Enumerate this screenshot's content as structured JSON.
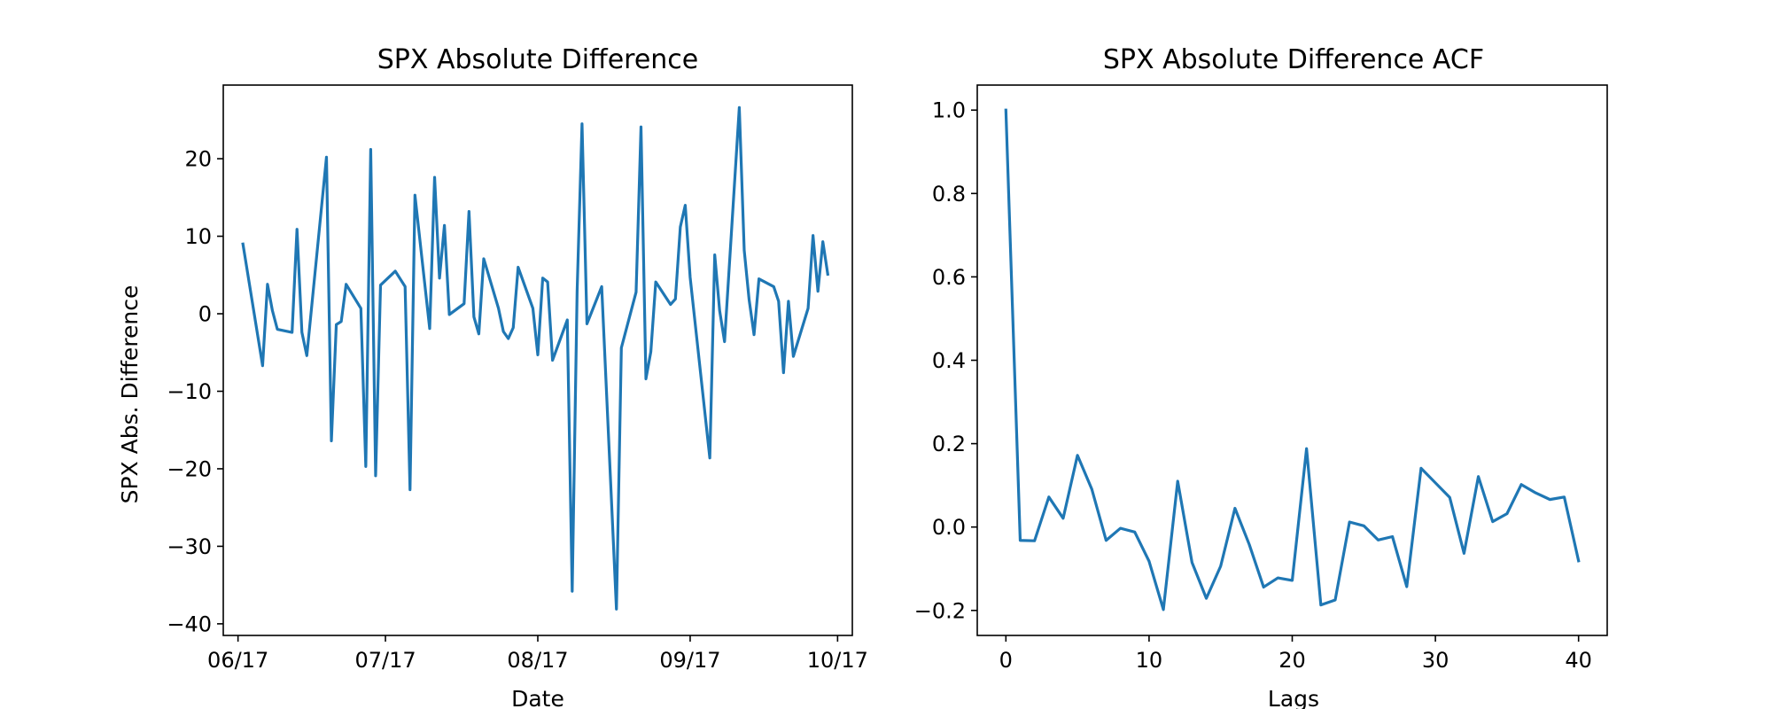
{
  "chart_data": [
    {
      "type": "line",
      "title": "SPX Absolute Difference",
      "xlabel": "Date",
      "ylabel": "SPX Abs. Difference",
      "x_axis_kind": "date",
      "x_tick_labels": [
        {
          "date": "2017-06-01",
          "label": "06/17"
        },
        {
          "date": "2017-07-01",
          "label": "07/17"
        },
        {
          "date": "2017-08-01",
          "label": "08/17"
        },
        {
          "date": "2017-09-01",
          "label": "09/17"
        },
        {
          "date": "2017-10-01",
          "label": "10/17"
        }
      ],
      "yticks": [
        -40,
        -30,
        -20,
        -10,
        0,
        10,
        20
      ],
      "xlim": [
        "2017-05-29",
        "2017-10-04"
      ],
      "ylim": [
        -41.5,
        29.5
      ],
      "grid": false,
      "series": [
        {
          "color": "#1f77b4",
          "x": [
            "2017-06-02",
            "2017-06-06",
            "2017-06-07",
            "2017-06-08",
            "2017-06-09",
            "2017-06-12",
            "2017-06-13",
            "2017-06-14",
            "2017-06-15",
            "2017-06-19",
            "2017-06-20",
            "2017-06-21",
            "2017-06-22",
            "2017-06-23",
            "2017-06-26",
            "2017-06-27",
            "2017-06-28",
            "2017-06-29",
            "2017-06-30",
            "2017-07-03",
            "2017-07-05",
            "2017-07-06",
            "2017-07-07",
            "2017-07-10",
            "2017-07-11",
            "2017-07-12",
            "2017-07-13",
            "2017-07-14",
            "2017-07-17",
            "2017-07-18",
            "2017-07-19",
            "2017-07-20",
            "2017-07-21",
            "2017-07-24",
            "2017-07-25",
            "2017-07-26",
            "2017-07-27",
            "2017-07-28",
            "2017-07-31",
            "2017-08-01",
            "2017-08-02",
            "2017-08-03",
            "2017-08-04",
            "2017-08-07",
            "2017-08-08",
            "2017-08-09",
            "2017-08-10",
            "2017-08-11",
            "2017-08-14",
            "2017-08-17",
            "2017-08-18",
            "2017-08-21",
            "2017-08-22",
            "2017-08-23",
            "2017-08-24",
            "2017-08-25",
            "2017-08-28",
            "2017-08-29",
            "2017-08-30",
            "2017-08-31",
            "2017-09-01",
            "2017-09-05",
            "2017-09-06",
            "2017-09-07",
            "2017-09-08",
            "2017-09-11",
            "2017-09-12",
            "2017-09-13",
            "2017-09-14",
            "2017-09-15",
            "2017-09-18",
            "2017-09-19",
            "2017-09-20",
            "2017-09-21",
            "2017-09-22",
            "2017-09-25",
            "2017-09-26",
            "2017-09-27",
            "2017-09-28",
            "2017-09-29"
          ],
          "y": [
            9.0,
            -6.7,
            3.8,
            0.4,
            -2.0,
            -2.4,
            10.9,
            -2.4,
            -5.4,
            20.2,
            -16.4,
            -1.4,
            -1.0,
            3.8,
            0.7,
            -19.7,
            21.2,
            -20.9,
            3.7,
            5.5,
            3.5,
            -22.7,
            15.3,
            -1.9,
            17.6,
            4.6,
            11.4,
            -0.1,
            1.3,
            13.2,
            -0.4,
            -2.6,
            7.1,
            0.7,
            -2.3,
            -3.2,
            -1.8,
            6.0,
            0.7,
            -5.3,
            4.6,
            4.1,
            -6.0,
            -0.8,
            -35.8,
            2.9,
            24.5,
            -1.3,
            3.5,
            -38.1,
            -4.4,
            2.8,
            24.1,
            -8.4,
            -4.9,
            4.1,
            1.2,
            1.9,
            11.2,
            14.0,
            4.7,
            -18.6,
            7.6,
            0.4,
            -3.6,
            26.6,
            8.2,
            1.8,
            -2.7,
            4.5,
            3.5,
            1.6,
            -7.6,
            1.6,
            -5.5,
            0.7,
            10.1,
            2.9,
            9.3,
            5.1
          ]
        }
      ]
    },
    {
      "type": "line",
      "title": "SPX Absolute Difference ACF",
      "xlabel": "Lags",
      "ylabel": "",
      "xticks": [
        0,
        10,
        20,
        30,
        40
      ],
      "yticks": [
        -0.2,
        0.0,
        0.2,
        0.4,
        0.6,
        0.8,
        1.0
      ],
      "ytick_labels": [
        "−0.2",
        "0.0",
        "0.2",
        "0.4",
        "0.6",
        "0.8",
        "1.0"
      ],
      "xlim": [
        -2.0,
        42.0
      ],
      "ylim": [
        -0.26,
        1.06
      ],
      "grid": false,
      "series": [
        {
          "color": "#1f77b4",
          "x": [
            0,
            1,
            2,
            3,
            4,
            5,
            6,
            7,
            8,
            9,
            10,
            11,
            12,
            13,
            14,
            15,
            16,
            17,
            18,
            19,
            20,
            21,
            22,
            23,
            24,
            25,
            26,
            27,
            28,
            29,
            30,
            31,
            32,
            33,
            34,
            35,
            36,
            37,
            38,
            39,
            40
          ],
          "y": [
            1.0,
            -0.032,
            -0.033,
            0.072,
            0.021,
            0.172,
            0.091,
            -0.032,
            -0.003,
            -0.012,
            -0.082,
            -0.198,
            0.11,
            -0.085,
            -0.171,
            -0.094,
            0.045,
            -0.042,
            -0.144,
            -0.122,
            -0.128,
            0.188,
            -0.187,
            -0.175,
            0.012,
            0.003,
            -0.031,
            -0.023,
            -0.143,
            0.141,
            0.106,
            0.071,
            -0.063,
            0.121,
            0.013,
            0.032,
            0.102,
            0.082,
            0.066,
            0.072,
            -0.081
          ]
        }
      ]
    }
  ]
}
